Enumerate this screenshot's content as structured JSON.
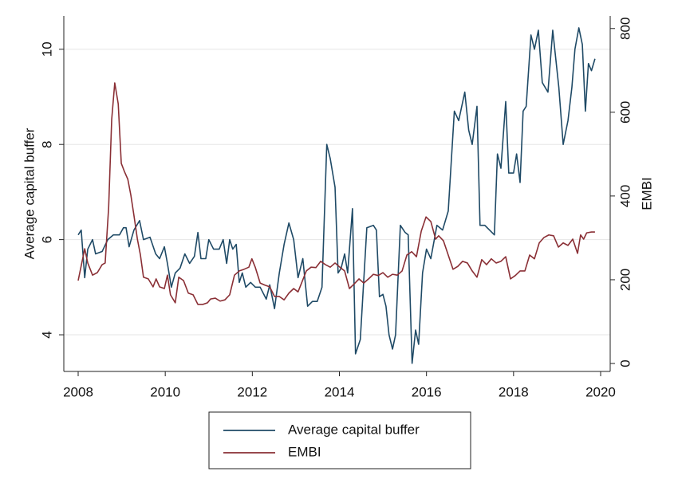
{
  "chart_data": {
    "type": "line",
    "xlim": [
      2007.67,
      2020.22
    ],
    "xticks": [
      2008,
      2010,
      2012,
      2014,
      2016,
      2018,
      2020
    ],
    "ylim": [
      3.23,
      10.7
    ],
    "yticks": [
      4,
      6,
      8,
      10
    ],
    "ylabel": "Average capital buffer",
    "y2lim": [
      -19,
      830
    ],
    "y2ticks": [
      0,
      200,
      400,
      600,
      800
    ],
    "y2label": "EMBI",
    "grid": true,
    "series": [
      {
        "name": "Average capital buffer",
        "color": "#1f4a66",
        "axis": "y",
        "x": [
          2008,
          2008.07,
          2008.15,
          2008.22,
          2008.33,
          2008.4,
          2008.55,
          2008.68,
          2008.81,
          2008.95,
          2009.04,
          2009.1,
          2009.17,
          2009.28,
          2009.41,
          2009.5,
          2009.65,
          2009.78,
          2009.87,
          2009.98,
          2010.05,
          2010.14,
          2010.23,
          2010.34,
          2010.45,
          2010.56,
          2010.67,
          2010.75,
          2010.82,
          2010.93,
          2011,
          2011.11,
          2011.24,
          2011.33,
          2011.41,
          2011.48,
          2011.55,
          2011.63,
          2011.7,
          2011.77,
          2011.85,
          2011.96,
          2012.07,
          2012.18,
          2012.32,
          2012.4,
          2012.51,
          2012.62,
          2012.73,
          2012.84,
          2012.95,
          2013.05,
          2013.16,
          2013.27,
          2013.38,
          2013.49,
          2013.6,
          2013.71,
          2013.79,
          2013.9,
          2013.97,
          2014.04,
          2014.12,
          2014.19,
          2014.3,
          2014.37,
          2014.48,
          2014.63,
          2014.78,
          2014.85,
          2014.92,
          2015,
          2015.07,
          2015.14,
          2015.22,
          2015.29,
          2015.4,
          2015.51,
          2015.58,
          2015.67,
          2015.75,
          2015.82,
          2015.91,
          2016,
          2016.1,
          2016.24,
          2016.37,
          2016.5,
          2016.64,
          2016.74,
          2016.88,
          2016.97,
          2017.05,
          2017.16,
          2017.23,
          2017.34,
          2017.45,
          2017.56,
          2017.63,
          2017.71,
          2017.82,
          2017.89,
          2018,
          2018.07,
          2018.15,
          2018.22,
          2018.29,
          2018.4,
          2018.48,
          2018.57,
          2018.66,
          2018.79,
          2018.9,
          2018.97,
          2019.04,
          2019.14,
          2019.25,
          2019.34,
          2019.41,
          2019.5,
          2019.58,
          2019.65,
          2019.72,
          2019.79,
          2019.87
        ],
        "values": [
          6.1,
          6.2,
          5.2,
          5.8,
          6.0,
          5.7,
          5.75,
          6.0,
          6.1,
          6.1,
          6.25,
          6.25,
          5.85,
          6.2,
          6.4,
          6.0,
          6.05,
          5.7,
          5.6,
          5.85,
          5.5,
          5.0,
          5.3,
          5.4,
          5.7,
          5.5,
          5.65,
          6.15,
          5.6,
          5.6,
          6.0,
          5.8,
          5.8,
          6.0,
          5.5,
          6.0,
          5.8,
          5.9,
          5.1,
          5.3,
          5.0,
          5.1,
          5.0,
          5.0,
          4.75,
          5.05,
          4.55,
          5.3,
          5.9,
          6.35,
          6.0,
          5.2,
          5.6,
          4.6,
          4.7,
          4.7,
          5.0,
          8.0,
          7.7,
          7.1,
          5.3,
          5.4,
          5.7,
          5.3,
          6.65,
          3.6,
          3.9,
          6.25,
          6.3,
          6.2,
          4.8,
          4.85,
          4.6,
          4.0,
          3.7,
          4.0,
          6.3,
          6.15,
          6.1,
          3.4,
          4.1,
          3.8,
          5.3,
          5.8,
          5.6,
          6.3,
          6.2,
          6.6,
          8.7,
          8.5,
          9.1,
          8.3,
          8.0,
          8.8,
          6.3,
          6.3,
          6.2,
          6.1,
          7.8,
          7.5,
          8.9,
          7.4,
          7.4,
          7.8,
          7.2,
          8.7,
          8.8,
          10.3,
          10.0,
          10.4,
          9.3,
          9.1,
          10.4,
          9.8,
          9.2,
          8.0,
          8.5,
          9.2,
          10.0,
          10.45,
          10.1,
          8.7,
          9.7,
          9.55,
          9.8
        ]
      },
      {
        "name": "EMBI",
        "color": "#8a2f35",
        "axis": "y2",
        "x": [
          2008,
          2008.15,
          2008.22,
          2008.33,
          2008.44,
          2008.55,
          2008.62,
          2008.7,
          2008.77,
          2008.84,
          2008.92,
          2008.99,
          2009.06,
          2009.14,
          2009.21,
          2009.28,
          2009.36,
          2009.43,
          2009.5,
          2009.61,
          2009.72,
          2009.79,
          2009.87,
          2009.98,
          2010.05,
          2010.12,
          2010.23,
          2010.31,
          2010.42,
          2010.53,
          2010.64,
          2010.75,
          2010.86,
          2010.97,
          2011.04,
          2011.15,
          2011.26,
          2011.37,
          2011.48,
          2011.59,
          2011.7,
          2011.81,
          2011.92,
          2011.99,
          2012.07,
          2012.18,
          2012.29,
          2012.4,
          2012.51,
          2012.62,
          2012.73,
          2012.84,
          2012.95,
          2013.05,
          2013.13,
          2013.24,
          2013.35,
          2013.46,
          2013.57,
          2013.68,
          2013.79,
          2013.9,
          2014.01,
          2014.12,
          2014.23,
          2014.34,
          2014.45,
          2014.56,
          2014.67,
          2014.78,
          2014.89,
          2015,
          2015.11,
          2015.22,
          2015.33,
          2015.44,
          2015.55,
          2015.66,
          2015.77,
          2015.88,
          2015.99,
          2016.1,
          2016.21,
          2016.28,
          2016.39,
          2016.5,
          2016.61,
          2016.72,
          2016.83,
          2016.94,
          2017.05,
          2017.16,
          2017.27,
          2017.38,
          2017.49,
          2017.6,
          2017.71,
          2017.82,
          2017.93,
          2018.04,
          2018.15,
          2018.26,
          2018.37,
          2018.48,
          2018.59,
          2018.7,
          2018.81,
          2018.92,
          2019.03,
          2019.14,
          2019.25,
          2019.36,
          2019.47,
          2019.54,
          2019.61,
          2019.68,
          2019.79,
          2019.87
        ],
        "values": [
          198,
          274,
          240,
          211,
          217,
          236,
          240,
          373,
          583,
          670,
          620,
          478,
          459,
          440,
          402,
          354,
          297,
          259,
          206,
          202,
          183,
          202,
          183,
          179,
          211,
          164,
          145,
          206,
          198,
          168,
          164,
          141,
          141,
          145,
          154,
          156,
          149,
          152,
          164,
          211,
          221,
          225,
          230,
          250,
          229,
          192,
          187,
          183,
          160,
          160,
          152,
          168,
          179,
          171,
          192,
          221,
          230,
          229,
          244,
          236,
          230,
          240,
          230,
          221,
          179,
          190,
          202,
          192,
          202,
          213,
          210,
          217,
          206,
          213,
          211,
          221,
          259,
          267,
          255,
          316,
          350,
          339,
          297,
          305,
          293,
          259,
          225,
          232,
          244,
          240,
          221,
          206,
          248,
          236,
          250,
          240,
          244,
          255,
          202,
          210,
          221,
          221,
          259,
          250,
          288,
          301,
          307,
          305,
          278,
          288,
          282,
          297,
          263,
          307,
          297,
          312,
          314,
          314
        ]
      }
    ]
  }
}
